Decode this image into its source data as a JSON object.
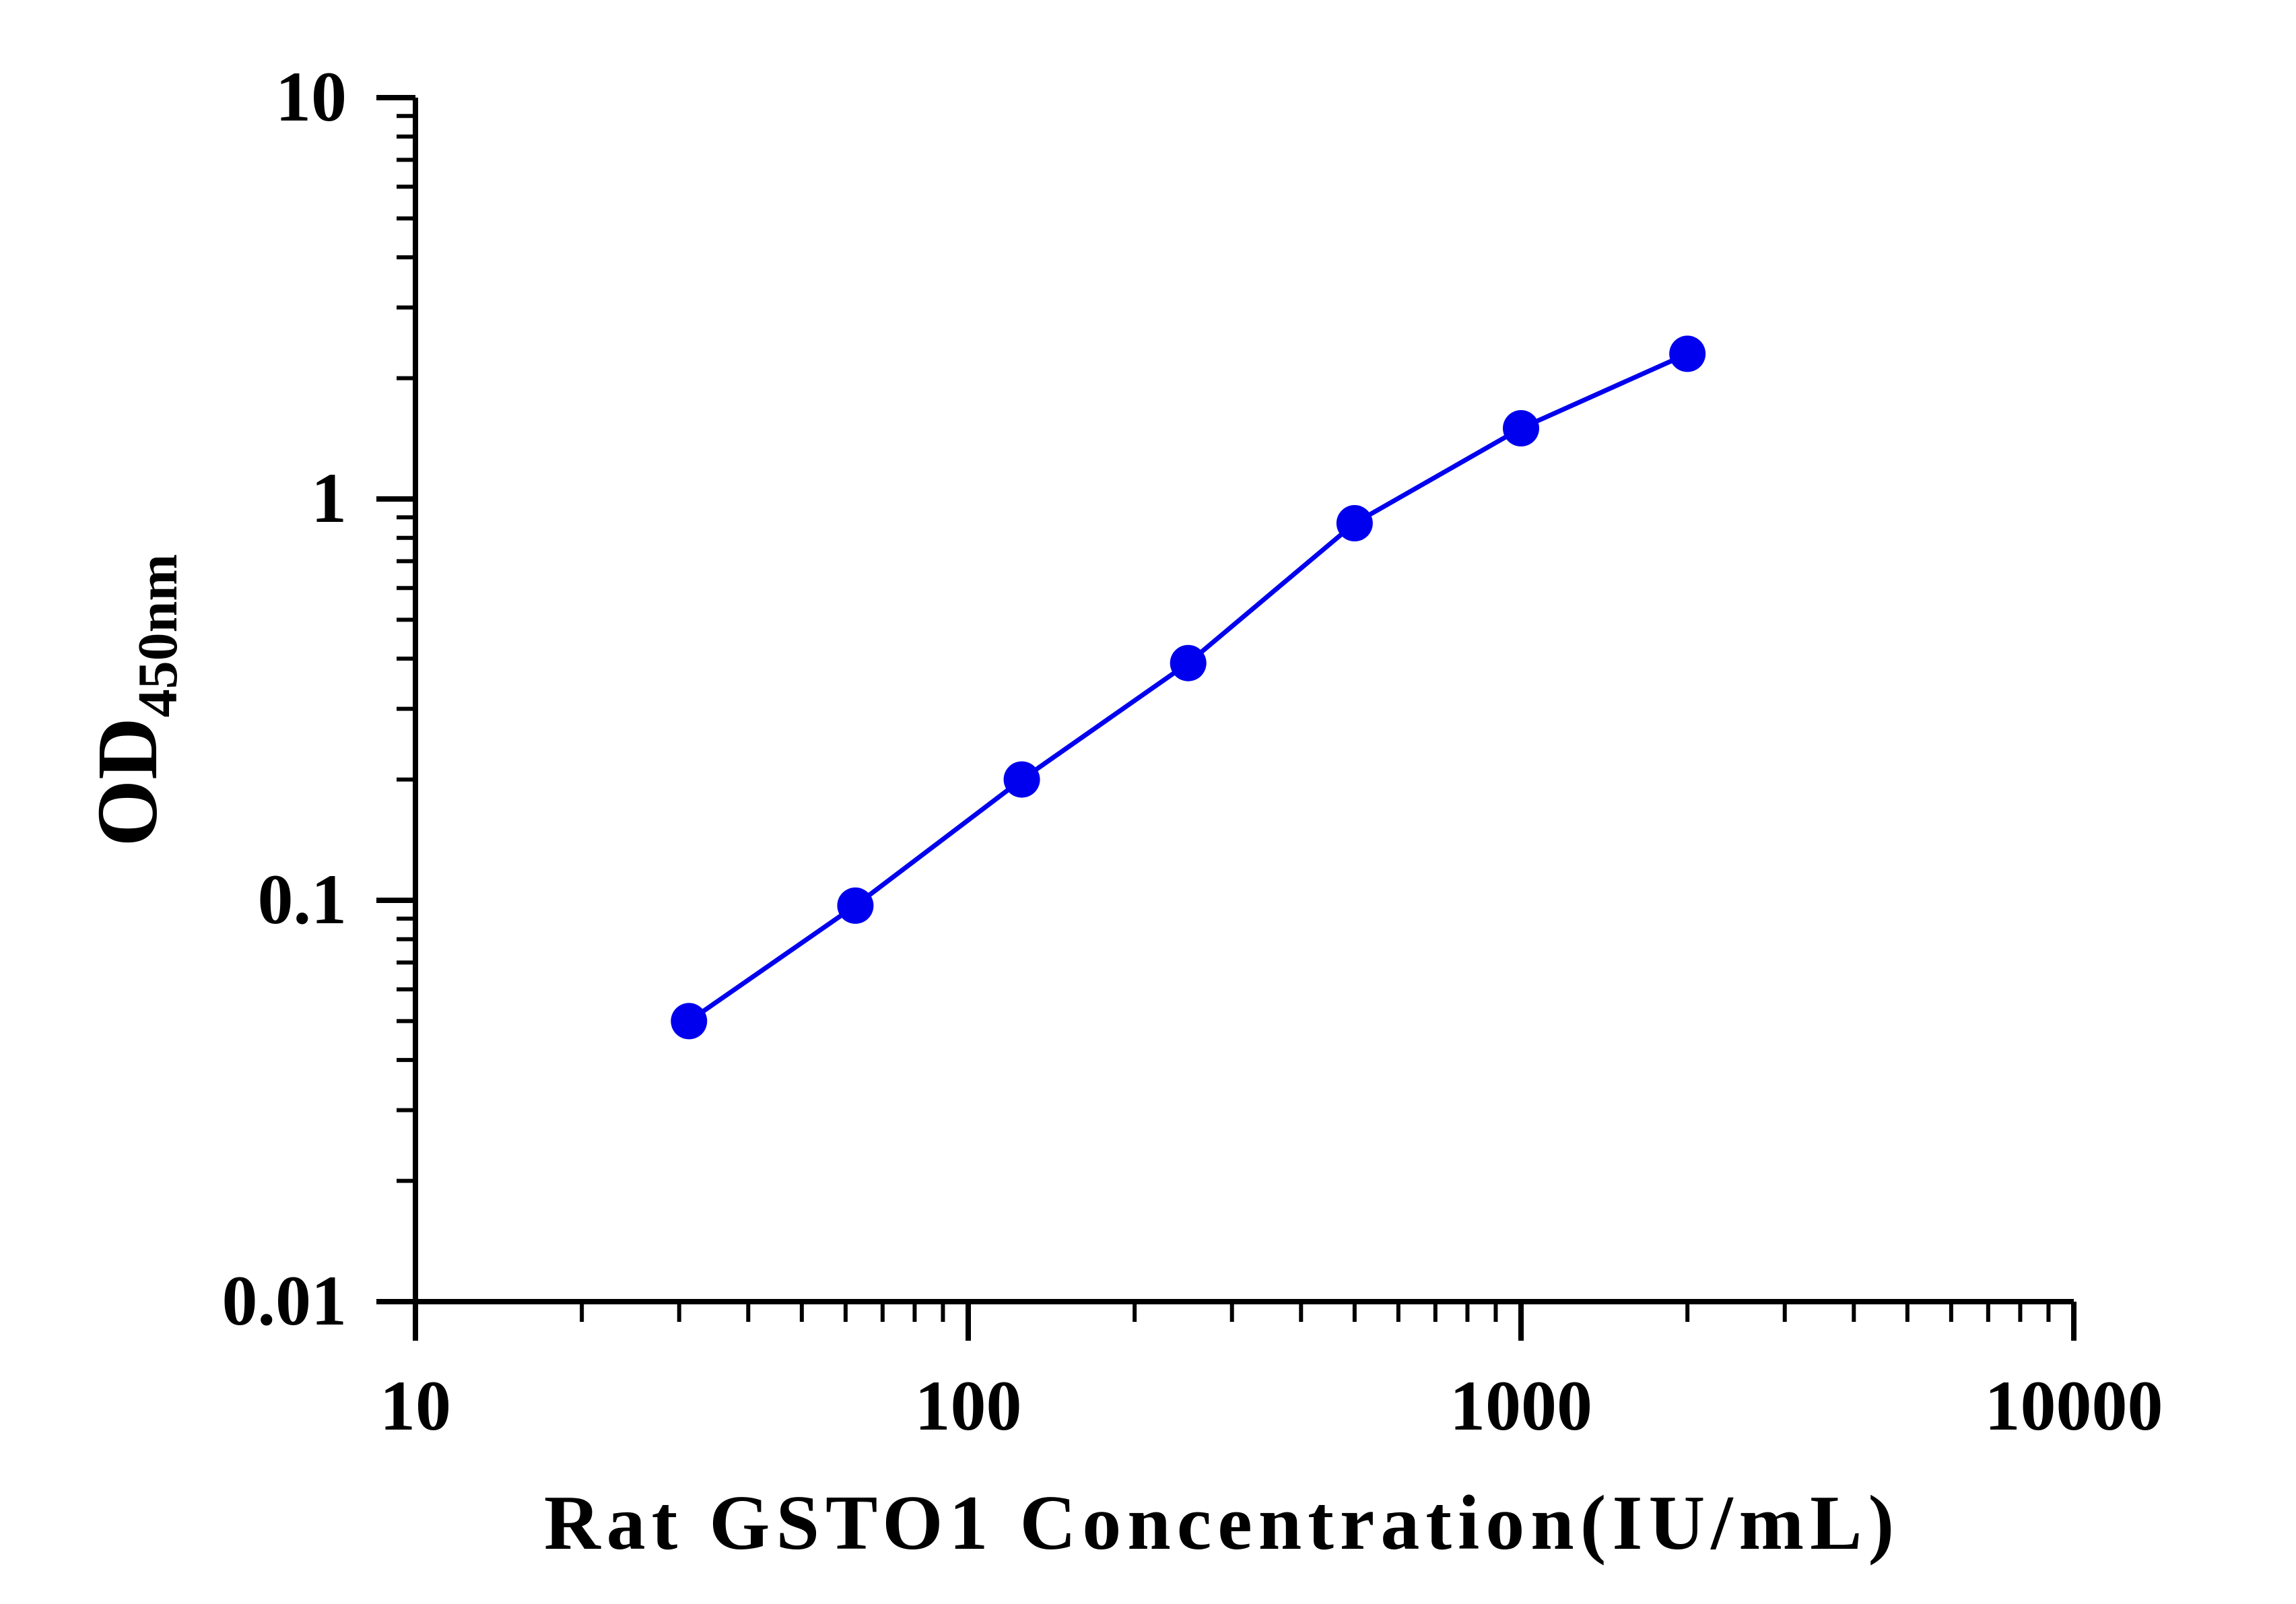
{
  "chart_data": {
    "type": "line",
    "xlabel": "Rat GSTO1 Concentration(IU/mL)",
    "ylabel_main": "OD",
    "ylabel_sub": "450nm",
    "x_scale": "log",
    "y_scale": "log",
    "xlim": [
      10,
      10000
    ],
    "ylim": [
      0.01,
      10
    ],
    "x_ticks": [
      "10",
      "100",
      "1000",
      "10000"
    ],
    "y_ticks": [
      "0.01",
      "0.1",
      "1",
      "10"
    ],
    "grid": false,
    "series": [
      {
        "color": "#0000ee",
        "x": [
          31.25,
          62.5,
          125,
          250,
          500,
          1000,
          2000
        ],
        "y": [
          0.05,
          0.097,
          0.2,
          0.39,
          0.87,
          1.5,
          2.3
        ]
      }
    ]
  }
}
